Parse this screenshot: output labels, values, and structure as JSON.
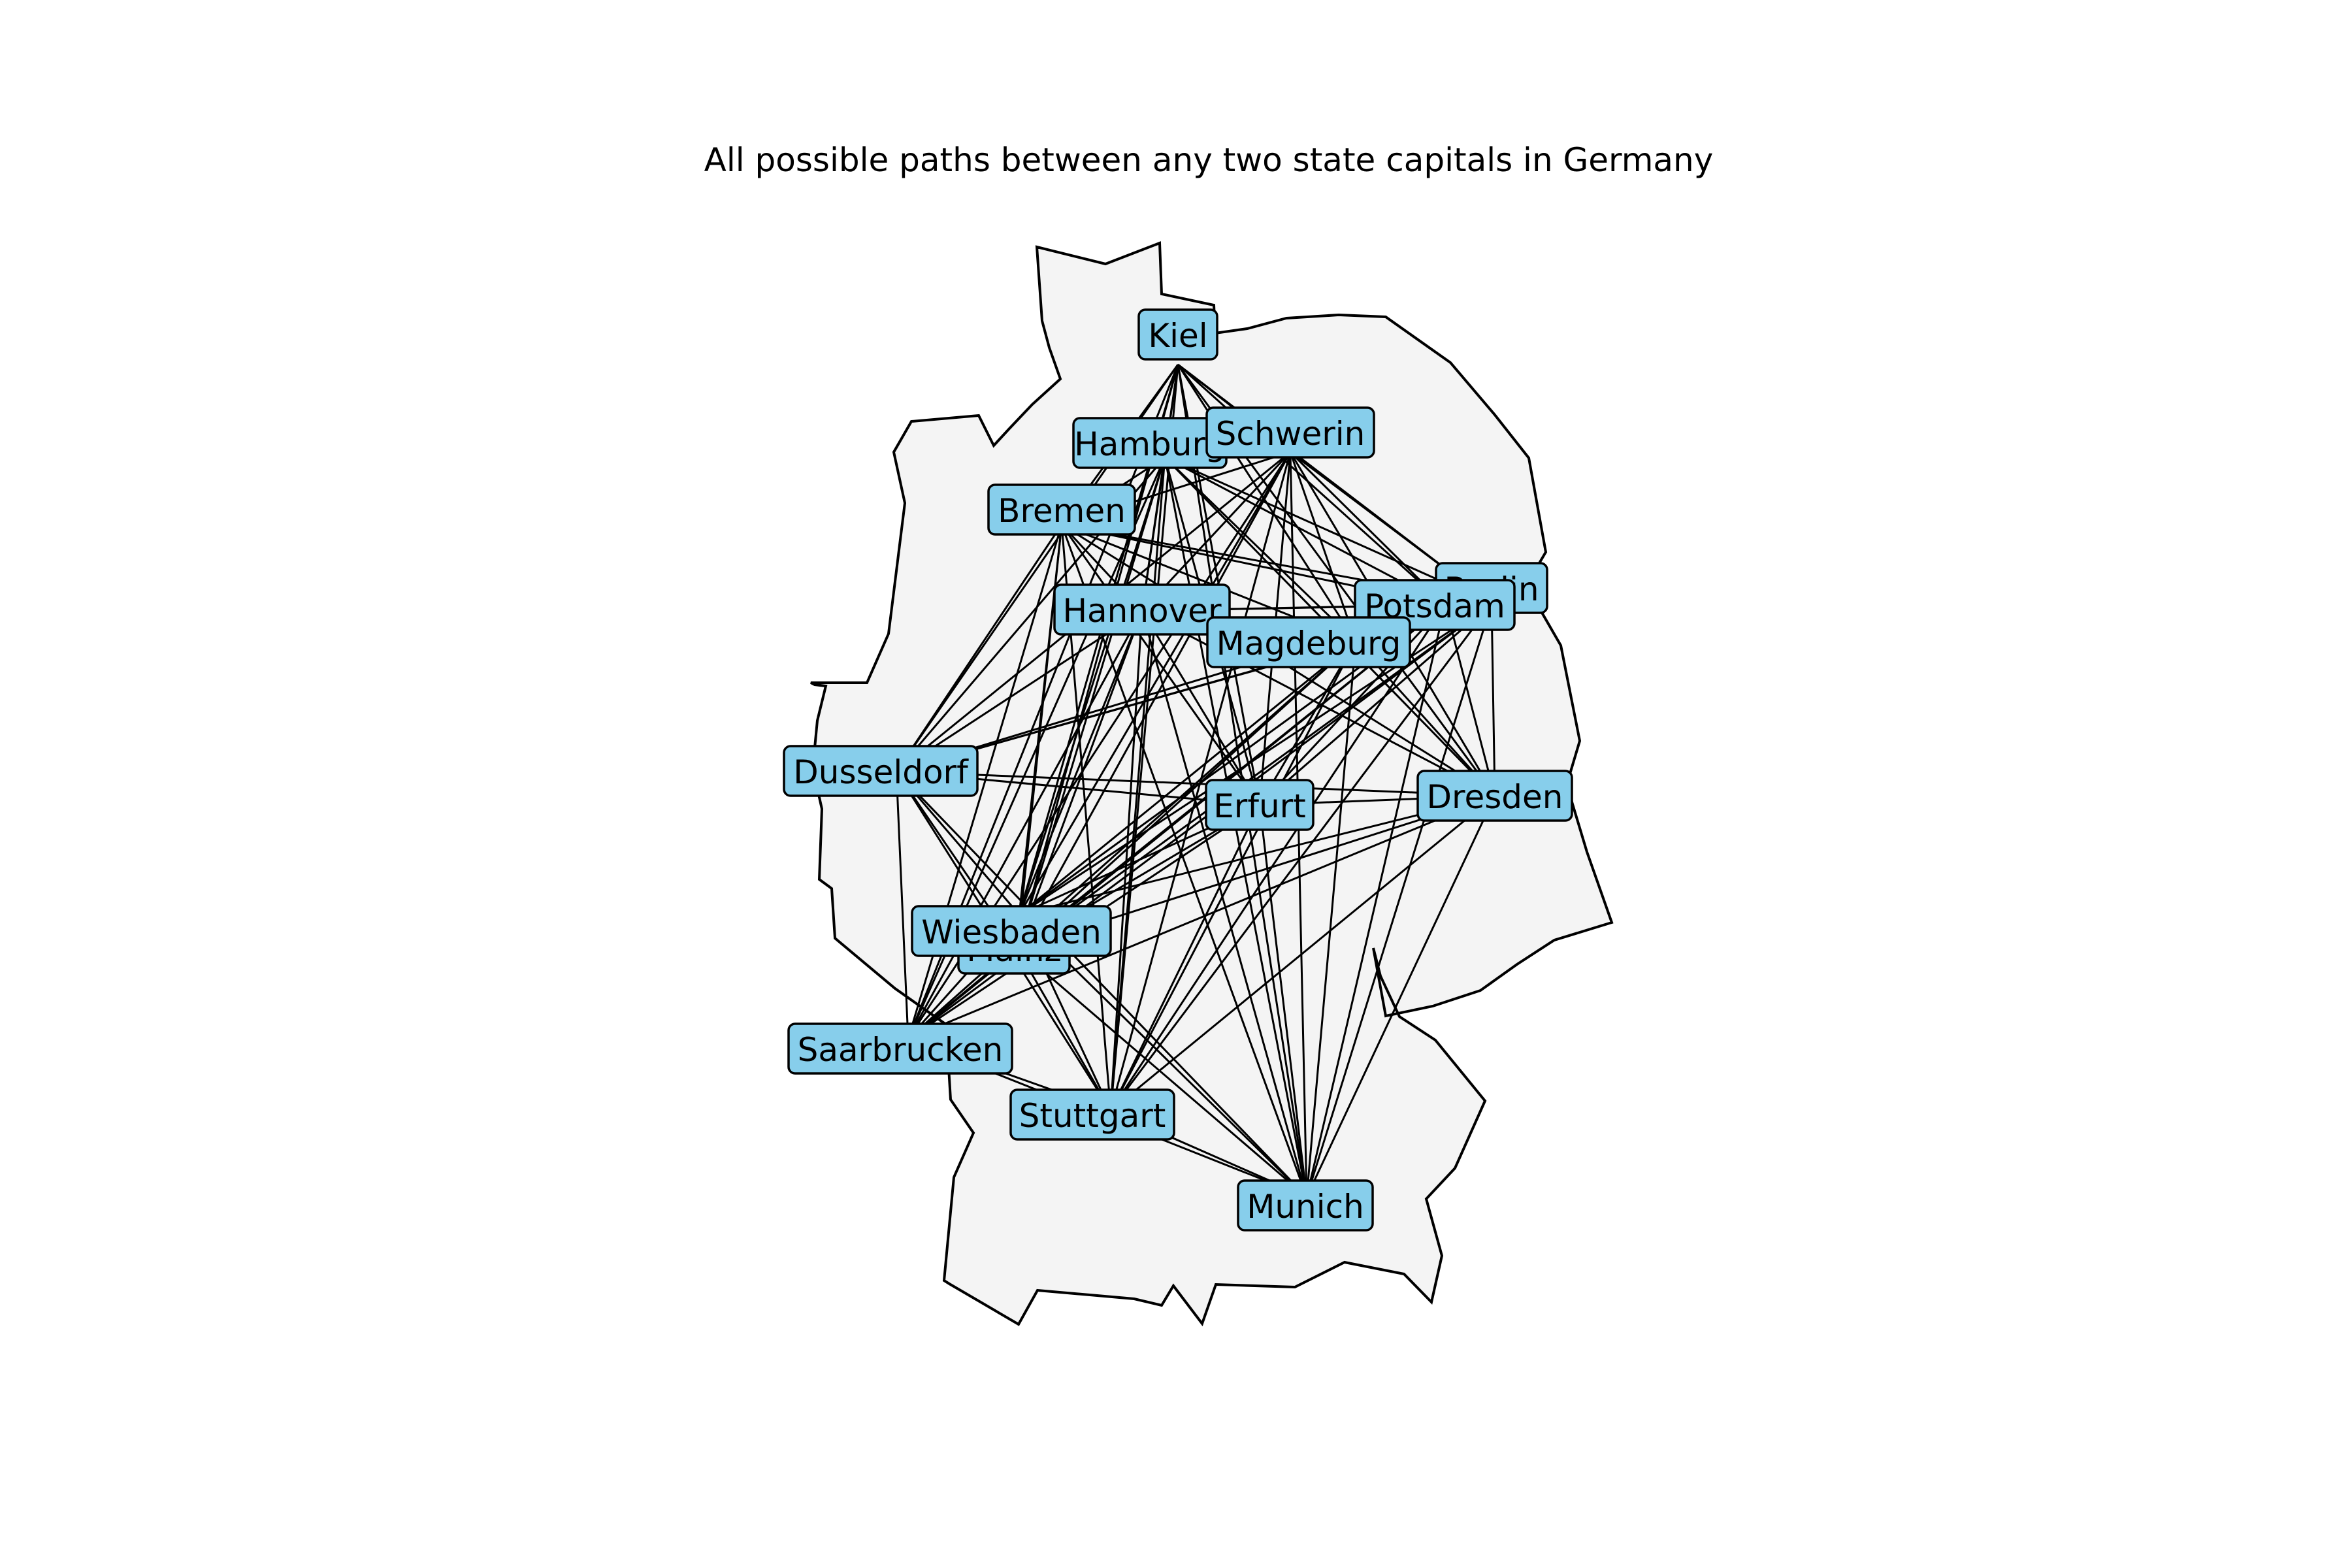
{
  "title": "All possible paths between any two state capitals in Germany",
  "colors": {
    "node_fill": "#87ceeb",
    "node_stroke": "#000000",
    "edge": "#000000",
    "country_fill": "#f4f4f4"
  },
  "cities": [
    {
      "id": "kiel",
      "label": "Kiel"
    },
    {
      "id": "hamburg",
      "label": "Hamburg"
    },
    {
      "id": "schwerin",
      "label": "Schwerin"
    },
    {
      "id": "bremen",
      "label": "Bremen"
    },
    {
      "id": "berlin",
      "label": "Berlin"
    },
    {
      "id": "potsdam",
      "label": "Potsdam"
    },
    {
      "id": "hannover",
      "label": "Hannover"
    },
    {
      "id": "magdeburg",
      "label": "Magdeburg"
    },
    {
      "id": "dusseldorf",
      "label": "Dusseldorf"
    },
    {
      "id": "erfurt",
      "label": "Erfurt"
    },
    {
      "id": "dresden",
      "label": "Dresden"
    },
    {
      "id": "mainz",
      "label": "Mainz"
    },
    {
      "id": "wiesbaden",
      "label": "Wiesbaden"
    },
    {
      "id": "saarbrucken",
      "label": "Saarbrucken"
    },
    {
      "id": "stuttgart",
      "label": "Stuttgart"
    },
    {
      "id": "munich",
      "label": "Munich"
    }
  ],
  "paths": "all pairs"
}
